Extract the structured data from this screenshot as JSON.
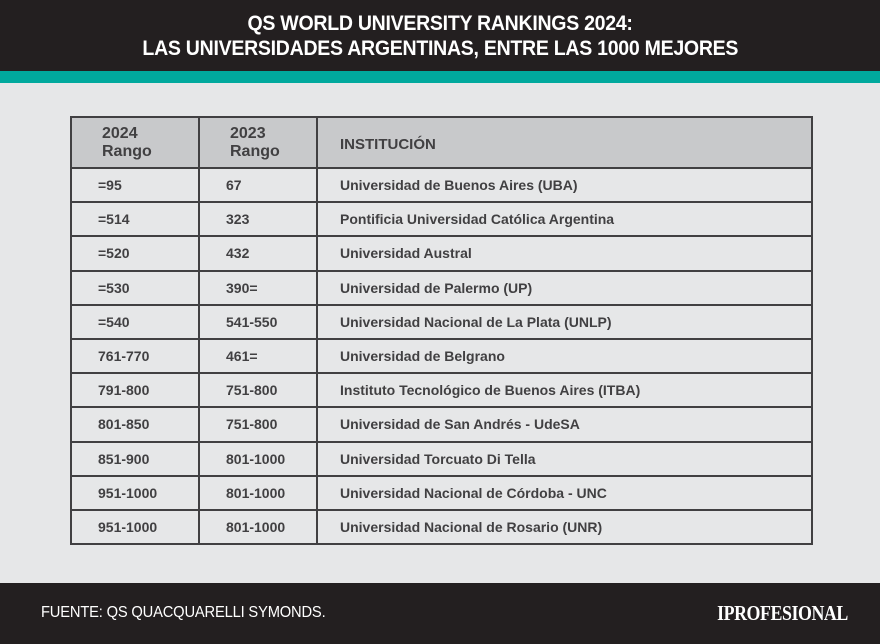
{
  "header": {
    "title_line1": "QS WORLD UNIVERSITY RANKINGS 2024:",
    "title_line2": "LAS UNIVERSIDADES ARGENTINAS, ENTRE LAS 1000 MEJORES"
  },
  "colors": {
    "header_bg": "#231f20",
    "accent_teal": "#00a99d",
    "page_bg": "#e6e7e8",
    "table_header_bg": "#c8c9cb",
    "text_dark": "#414042"
  },
  "table": {
    "columns": [
      {
        "line1": "2024",
        "line2": "Rango"
      },
      {
        "line1": "2023",
        "line2": "Rango"
      },
      {
        "label": "INSTITUCIÓN"
      }
    ],
    "rows": [
      {
        "rank_2024": "=95",
        "rank_2023": "67",
        "institution": "Universidad de Buenos Aires (UBA)"
      },
      {
        "rank_2024": "=514",
        "rank_2023": "323",
        "institution": "Pontificia Universidad Católica Argentina"
      },
      {
        "rank_2024": "=520",
        "rank_2023": "432",
        "institution": "Universidad Austral"
      },
      {
        "rank_2024": "=530",
        "rank_2023": "390=",
        "institution": "Universidad de Palermo (UP)"
      },
      {
        "rank_2024": "=540",
        "rank_2023": "541-550",
        "institution": "Universidad Nacional de La Plata (UNLP)"
      },
      {
        "rank_2024": "761-770",
        "rank_2023": "461=",
        "institution": "Universidad de Belgrano"
      },
      {
        "rank_2024": "791-800",
        "rank_2023": "751-800",
        "institution": "Instituto Tecnológico de Buenos Aires (ITBA)"
      },
      {
        "rank_2024": "801-850",
        "rank_2023": "751-800",
        "institution": "Universidad de San Andrés - UdeSA"
      },
      {
        "rank_2024": "851-900",
        "rank_2023": "801-1000",
        "institution": "Universidad Torcuato Di Tella"
      },
      {
        "rank_2024": "951-1000",
        "rank_2023": "801-1000",
        "institution": "Universidad Nacional de Córdoba - UNC"
      },
      {
        "rank_2024": "951-1000",
        "rank_2023": "801-1000",
        "institution": "Universidad Nacional de Rosario (UNR)"
      }
    ]
  },
  "footer": {
    "source": "FUENTE: QS QUACQUARELLI SYMONDS.",
    "brand": "IPROFESIONAL"
  }
}
